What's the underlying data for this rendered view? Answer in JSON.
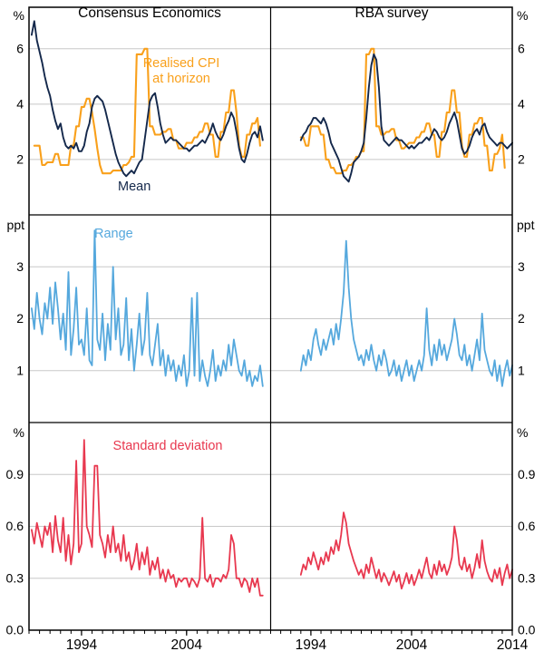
{
  "chart_data": {
    "type": "line",
    "layout": {
      "grid": "2 columns x 3 rows",
      "legend_position": "in-panel annotations",
      "gridlines": true
    },
    "colors": {
      "grid": "#c8c8c8",
      "frame": "#000000",
      "mean": "#14284b",
      "realised_cpi": "#f9a01b",
      "range": "#55a8dd",
      "std_dev": "#e8384f"
    },
    "columns": [
      {
        "title": "Consensus Economics",
        "xlim": [
          1989,
          2012
        ],
        "ticks": [
          {
            "v": 1994,
            "l": "1994"
          },
          {
            "v": 2004,
            "l": "2004"
          }
        ]
      },
      {
        "title": "RBA survey",
        "xlim": [
          1990,
          2014
        ],
        "ticks": [
          {
            "v": 1994,
            "l": "1994"
          },
          {
            "v": 2004,
            "l": "2004"
          },
          {
            "v": 2014,
            "l": "2014"
          }
        ]
      }
    ],
    "rows": [
      {
        "unit": "%",
        "ylim": [
          0,
          7.5
        ],
        "ticks": [
          {
            "v": 2,
            "l": "2"
          },
          {
            "v": 4,
            "l": "4"
          },
          {
            "v": 6,
            "l": "6"
          }
        ]
      },
      {
        "unit": "ppt",
        "ylim": [
          0,
          4
        ],
        "ticks": [
          {
            "v": 1,
            "l": "1"
          },
          {
            "v": 2,
            "l": "2"
          },
          {
            "v": 3,
            "l": "3"
          }
        ]
      },
      {
        "unit": "%",
        "ylim": [
          0,
          1.2
        ],
        "ticks": [
          {
            "v": 0,
            "l": "0.0"
          },
          {
            "v": 0.3,
            "l": "0.3"
          },
          {
            "v": 0.6,
            "l": "0.6"
          },
          {
            "v": 0.9,
            "l": "0.9"
          }
        ]
      }
    ],
    "annotations": [
      {
        "text": "Realised CPI\nat horizon",
        "color": "#f9a01b"
      },
      {
        "text": "Mean",
        "color": "#14284b"
      },
      {
        "text": "Range",
        "color": "#55a8dd"
      },
      {
        "text": "Standard deviation",
        "color": "#e8384f"
      }
    ],
    "series": [
      {
        "name": "Realised CPI at horizon",
        "col": 0,
        "row": 0,
        "color": "#f9a01b",
        "width": 2.1,
        "start": 1989.5,
        "step": 0.25,
        "values": [
          2.5,
          2.5,
          2.5,
          1.8,
          1.8,
          1.9,
          1.9,
          1.9,
          2.2,
          2.2,
          1.8,
          1.8,
          1.8,
          1.8,
          2.5,
          2.5,
          3.2,
          3.2,
          3.9,
          3.9,
          4.2,
          4.2,
          3.7,
          3.1,
          2.4,
          1.8,
          1.5,
          1.5,
          1.5,
          1.5,
          1.6,
          1.6,
          1.6,
          1.6,
          1.8,
          1.8,
          1.9,
          2.1,
          2.1,
          5.8,
          5.8,
          5.8,
          6.0,
          6.0,
          3.2,
          3.2,
          2.9,
          2.9,
          2.9,
          3.0,
          3.0,
          3.1,
          3.1,
          2.7,
          2.7,
          2.4,
          2.4,
          2.4,
          2.6,
          2.6,
          2.6,
          2.8,
          2.8,
          3.0,
          3.0,
          3.3,
          3.3,
          2.9,
          2.9,
          2.1,
          2.1,
          3.0,
          3.0,
          3.7,
          3.7,
          4.5,
          4.5,
          3.7,
          2.5,
          2.1,
          2.1,
          2.9,
          2.9,
          3.3,
          3.3,
          3.5,
          2.5
        ]
      },
      {
        "name": "Mean",
        "col": 0,
        "row": 0,
        "color": "#14284b",
        "width": 1.9,
        "start": 1989.25,
        "step": 0.25,
        "values": [
          6.5,
          7.0,
          6.3,
          5.9,
          5.5,
          5.0,
          4.6,
          4.3,
          3.8,
          3.4,
          3.1,
          3.3,
          2.8,
          2.5,
          2.4,
          2.5,
          2.4,
          2.6,
          2.3,
          2.3,
          2.5,
          3.0,
          3.3,
          3.9,
          4.2,
          4.3,
          4.2,
          4.1,
          3.8,
          3.4,
          3.0,
          2.6,
          2.2,
          1.9,
          1.7,
          1.5,
          1.4,
          1.5,
          1.6,
          1.5,
          1.7,
          1.9,
          2.0,
          2.7,
          3.4,
          4.1,
          4.3,
          4.4,
          3.9,
          3.3,
          2.9,
          2.6,
          2.7,
          2.8,
          2.7,
          2.7,
          2.6,
          2.5,
          2.4,
          2.4,
          2.3,
          2.4,
          2.5,
          2.5,
          2.6,
          2.7,
          2.6,
          2.8,
          3.0,
          3.3,
          3.0,
          2.8,
          2.7,
          2.9,
          3.2,
          3.4,
          3.7,
          3.5,
          3.0,
          2.4,
          2.0,
          1.9,
          2.2,
          2.6,
          2.9,
          3.0,
          2.8,
          3.2,
          2.7
        ]
      },
      {
        "name": "Realised CPI at horizon",
        "col": 1,
        "row": 0,
        "color": "#f9a01b",
        "width": 2.1,
        "start": 1993.0,
        "step": 0.25,
        "values": [
          2.8,
          2.8,
          2.5,
          2.5,
          3.2,
          3.2,
          3.2,
          3.2,
          2.9,
          2.9,
          2.0,
          2.0,
          1.7,
          1.7,
          1.5,
          1.5,
          1.5,
          1.6,
          1.6,
          1.8,
          1.8,
          1.9,
          2.1,
          2.1,
          2.3,
          2.3,
          5.8,
          5.8,
          6.0,
          6.0,
          3.2,
          3.2,
          2.9,
          2.9,
          3.0,
          3.0,
          3.1,
          3.1,
          2.7,
          2.7,
          2.4,
          2.4,
          2.5,
          2.6,
          2.6,
          2.6,
          2.8,
          2.8,
          3.0,
          3.0,
          3.3,
          3.3,
          2.9,
          2.9,
          2.1,
          2.1,
          3.0,
          3.0,
          3.7,
          3.7,
          4.5,
          4.5,
          3.7,
          3.7,
          2.5,
          2.1,
          2.1,
          2.9,
          2.9,
          3.3,
          3.3,
          3.5,
          3.5,
          2.5,
          2.5,
          1.6,
          1.6,
          2.2,
          2.2,
          2.4,
          2.9,
          1.7
        ]
      },
      {
        "name": "Mean",
        "col": 1,
        "row": 0,
        "color": "#14284b",
        "width": 1.9,
        "start": 1993.0,
        "step": 0.25,
        "values": [
          2.7,
          2.9,
          3.0,
          3.2,
          3.3,
          3.5,
          3.5,
          3.4,
          3.3,
          3.5,
          3.3,
          3.0,
          2.6,
          2.4,
          2.2,
          2.0,
          1.7,
          1.4,
          1.3,
          1.2,
          1.5,
          1.9,
          2.0,
          2.1,
          2.3,
          2.6,
          3.5,
          4.6,
          5.4,
          5.8,
          5.6,
          4.6,
          3.2,
          2.7,
          2.6,
          2.5,
          2.6,
          2.7,
          2.8,
          2.7,
          2.7,
          2.6,
          2.5,
          2.4,
          2.5,
          2.4,
          2.5,
          2.6,
          2.6,
          2.7,
          2.8,
          2.7,
          2.9,
          3.1,
          3.0,
          2.8,
          2.7,
          2.8,
          3.0,
          3.3,
          3.5,
          3.7,
          3.4,
          2.9,
          2.4,
          2.2,
          2.3,
          2.5,
          2.8,
          3.0,
          3.1,
          2.9,
          3.2,
          3.3,
          3.0,
          2.8,
          2.7,
          2.6,
          2.5,
          2.6,
          2.6,
          2.5,
          2.4,
          2.5,
          2.6
        ]
      },
      {
        "name": "Range",
        "col": 0,
        "row": 1,
        "color": "#55a8dd",
        "width": 1.8,
        "start": 1989.25,
        "step": 0.25,
        "values": [
          2.2,
          1.8,
          2.5,
          2.0,
          1.7,
          2.3,
          2.0,
          2.6,
          1.9,
          2.7,
          2.2,
          1.6,
          2.1,
          1.4,
          2.9,
          1.3,
          1.8,
          2.6,
          1.5,
          1.6,
          1.3,
          2.2,
          1.2,
          1.1,
          3.7,
          1.6,
          1.4,
          2.1,
          1.2,
          1.9,
          1.4,
          3.0,
          1.6,
          2.2,
          1.3,
          1.5,
          2.4,
          1.2,
          1.8,
          1.0,
          1.5,
          2.1,
          1.3,
          1.6,
          2.5,
          1.3,
          1.1,
          1.5,
          1.9,
          1.1,
          1.4,
          0.9,
          1.3,
          1.0,
          1.2,
          0.8,
          1.1,
          0.9,
          1.3,
          0.7,
          1.0,
          2.4,
          0.9,
          2.5,
          0.8,
          1.2,
          0.9,
          0.7,
          1.0,
          1.4,
          0.8,
          1.1,
          0.9,
          1.2,
          1.0,
          1.5,
          1.1,
          1.6,
          1.3,
          1.0,
          0.9,
          1.2,
          0.8,
          1.0,
          0.7,
          0.9,
          0.8,
          1.1,
          0.7
        ]
      },
      {
        "name": "Range",
        "col": 1,
        "row": 1,
        "color": "#55a8dd",
        "width": 1.8,
        "start": 1993.0,
        "step": 0.25,
        "values": [
          1.0,
          1.3,
          1.1,
          1.4,
          1.2,
          1.6,
          1.8,
          1.5,
          1.3,
          1.6,
          1.4,
          1.6,
          1.8,
          1.5,
          1.9,
          1.6,
          2.0,
          2.5,
          3.5,
          2.6,
          2.0,
          1.6,
          1.4,
          1.2,
          1.3,
          1.1,
          1.4,
          1.2,
          1.5,
          1.2,
          1.0,
          1.3,
          1.1,
          1.4,
          1.2,
          0.9,
          1.0,
          1.2,
          0.9,
          1.1,
          0.8,
          1.0,
          1.2,
          0.9,
          1.1,
          0.8,
          1.0,
          1.2,
          1.0,
          1.3,
          2.2,
          1.4,
          1.1,
          1.5,
          1.2,
          1.6,
          1.3,
          1.5,
          1.2,
          1.4,
          1.6,
          2.0,
          1.7,
          1.3,
          1.2,
          1.5,
          1.1,
          1.3,
          1.0,
          1.3,
          1.6,
          1.2,
          2.1,
          1.4,
          1.2,
          1.0,
          0.9,
          1.2,
          0.8,
          1.1,
          0.7,
          1.0,
          1.2,
          0.9,
          1.1
        ]
      },
      {
        "name": "Standard deviation",
        "col": 0,
        "row": 2,
        "color": "#e8384f",
        "width": 1.8,
        "start": 1989.25,
        "step": 0.25,
        "values": [
          0.58,
          0.5,
          0.62,
          0.55,
          0.48,
          0.6,
          0.55,
          0.62,
          0.45,
          0.66,
          0.52,
          0.45,
          0.65,
          0.4,
          0.55,
          0.38,
          0.5,
          0.98,
          0.45,
          0.5,
          1.1,
          0.6,
          0.55,
          0.48,
          0.95,
          0.95,
          0.55,
          0.5,
          0.42,
          0.55,
          0.45,
          0.6,
          0.45,
          0.5,
          0.4,
          0.55,
          0.4,
          0.45,
          0.35,
          0.4,
          0.5,
          0.35,
          0.45,
          0.38,
          0.48,
          0.32,
          0.4,
          0.35,
          0.42,
          0.3,
          0.35,
          0.28,
          0.35,
          0.3,
          0.32,
          0.25,
          0.3,
          0.28,
          0.3,
          0.3,
          0.25,
          0.3,
          0.28,
          0.25,
          0.3,
          0.65,
          0.3,
          0.28,
          0.32,
          0.25,
          0.3,
          0.3,
          0.28,
          0.32,
          0.3,
          0.35,
          0.55,
          0.5,
          0.3,
          0.3,
          0.25,
          0.3,
          0.28,
          0.22,
          0.3,
          0.25,
          0.3,
          0.2,
          0.2
        ]
      },
      {
        "name": "Standard deviation",
        "col": 1,
        "row": 2,
        "color": "#e8384f",
        "width": 1.8,
        "start": 1993.0,
        "step": 0.25,
        "values": [
          0.32,
          0.38,
          0.35,
          0.42,
          0.38,
          0.45,
          0.4,
          0.35,
          0.42,
          0.38,
          0.45,
          0.4,
          0.48,
          0.44,
          0.52,
          0.46,
          0.55,
          0.68,
          0.62,
          0.5,
          0.45,
          0.4,
          0.36,
          0.32,
          0.35,
          0.3,
          0.38,
          0.33,
          0.42,
          0.36,
          0.3,
          0.35,
          0.28,
          0.33,
          0.3,
          0.26,
          0.3,
          0.34,
          0.28,
          0.32,
          0.24,
          0.28,
          0.33,
          0.27,
          0.32,
          0.26,
          0.3,
          0.35,
          0.3,
          0.36,
          0.42,
          0.33,
          0.3,
          0.38,
          0.32,
          0.4,
          0.34,
          0.38,
          0.32,
          0.36,
          0.42,
          0.6,
          0.52,
          0.38,
          0.35,
          0.42,
          0.34,
          0.38,
          0.3,
          0.36,
          0.44,
          0.36,
          0.52,
          0.4,
          0.34,
          0.3,
          0.28,
          0.35,
          0.3,
          0.36,
          0.26,
          0.33,
          0.38,
          0.3,
          0.35
        ]
      }
    ]
  }
}
